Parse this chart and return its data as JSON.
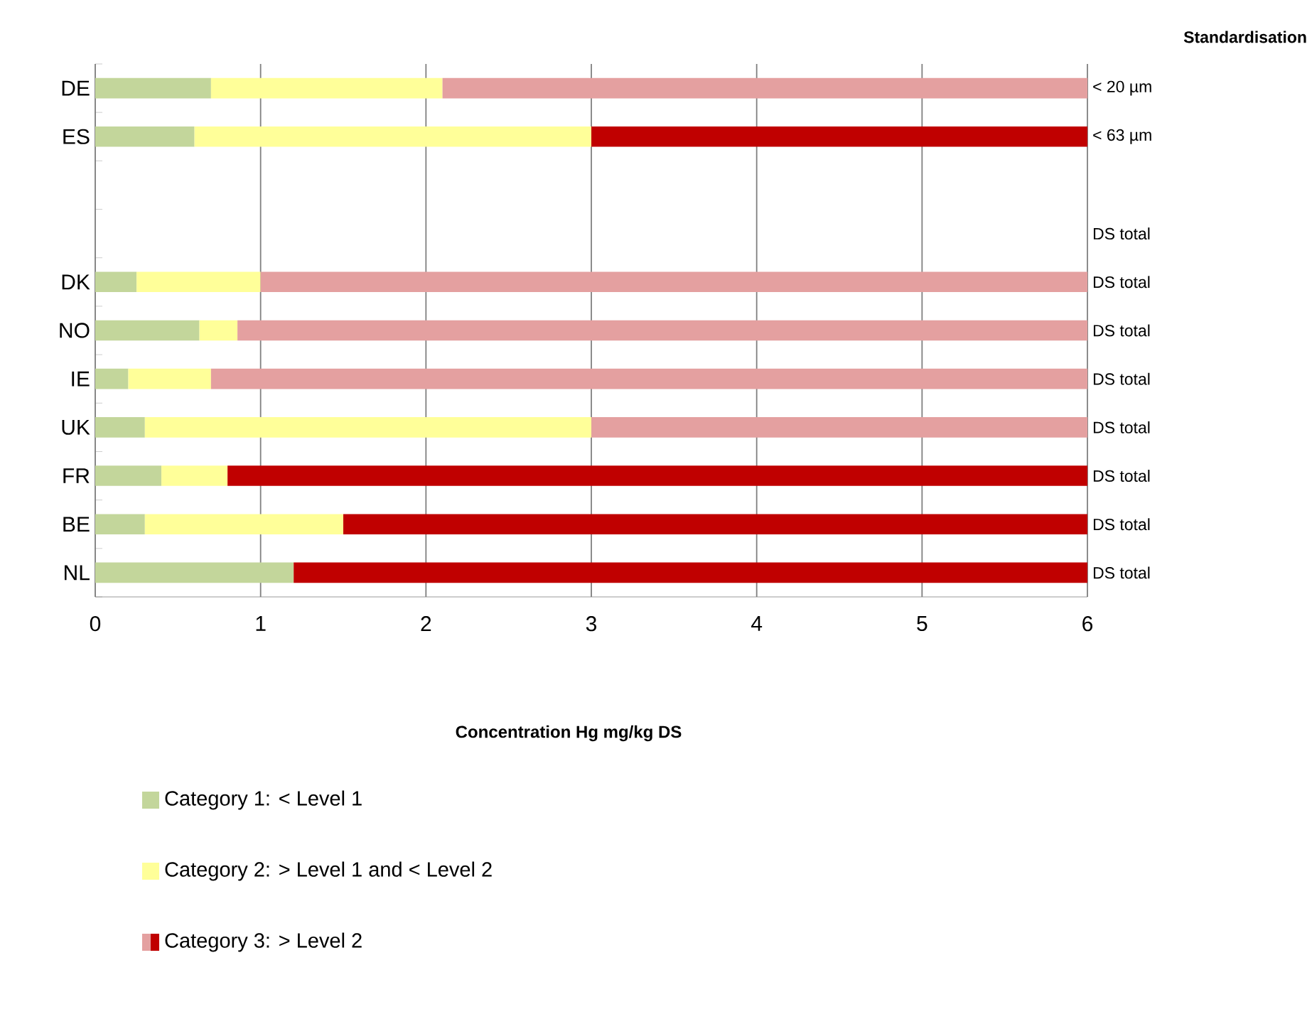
{
  "chart_data": {
    "type": "bar",
    "orientation": "horizontal",
    "stacked": true,
    "annotations": [
      "Concentration Hg mg/kg DS",
      "Standardisation"
    ],
    "categories": [
      "DE",
      "ES",
      null,
      null,
      "DK",
      "NO",
      "IE",
      "UK",
      "FR",
      "BE",
      "NL"
    ],
    "y2_categories": [
      "< 20 µm",
      "< 63 µm",
      null,
      "DS total",
      "DS total",
      "DS total",
      "DS total",
      "DS total",
      "DS total",
      "DS total",
      "DS total"
    ],
    "series": [
      {
        "name": "Category 1: < Level 1",
        "color": "#c3d69b",
        "values": [
          0.7,
          0.6,
          null,
          null,
          0.25,
          0.63,
          0.2,
          0.3,
          0.4,
          0.3,
          1.2
        ]
      },
      {
        "name": "Category 2: > Level 1 and < Level 2",
        "color": "#ffff99",
        "values": [
          1.4,
          2.4,
          null,
          null,
          0.75,
          0.23,
          0.5,
          2.7,
          0.4,
          1.2,
          0
        ]
      },
      {
        "name": "Category 3: > Level 2",
        "color": "#c00000",
        "colors": [
          "#e4a0a0",
          "#c00000",
          null,
          null,
          "#e4a0a0",
          "#e4a0a0",
          "#e4a0a0",
          "#e4a0a0",
          "#c00000",
          "#c00000",
          "#c00000"
        ],
        "values": [
          3.9,
          3.0,
          null,
          null,
          5.0,
          5.14,
          5.3,
          3.0,
          5.2,
          4.5,
          4.8
        ]
      }
    ],
    "xlim": [
      0,
      6
    ],
    "xticks": [
      0,
      1,
      2,
      3,
      4,
      5,
      6
    ],
    "grid": "x",
    "legend": "bottom"
  }
}
